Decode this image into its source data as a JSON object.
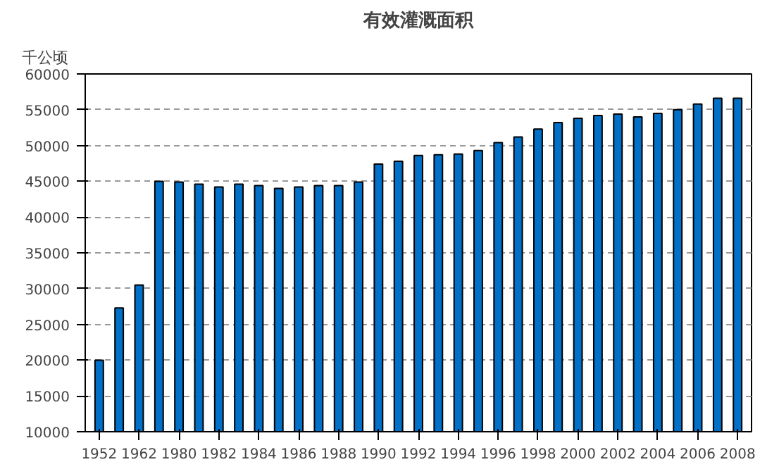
{
  "chart_data": {
    "type": "bar",
    "title": "有效灌溉面积",
    "ylabel": "千公顷",
    "categories": [
      "1952",
      null,
      "1962",
      null,
      "1980",
      null,
      "1982",
      null,
      "1984",
      null,
      "1986",
      null,
      "1988",
      null,
      "1990",
      null,
      "1992",
      null,
      "1994",
      null,
      "1996",
      null,
      "1998",
      null,
      "2000",
      null,
      "2002",
      null,
      "2004",
      null,
      "2006",
      null,
      "2008"
    ],
    "values": [
      20000,
      27300,
      30500,
      45000,
      44900,
      44600,
      44200,
      44600,
      44400,
      44000,
      44200,
      44400,
      44400,
      44900,
      47400,
      47800,
      48600,
      48700,
      48800,
      49300,
      50400,
      51200,
      52300,
      53200,
      53800,
      54200,
      54400,
      54000,
      54500,
      55000,
      55800,
      56600,
      56600
    ],
    "color": "#0070c8",
    "ylim": [
      10000,
      60000
    ],
    "yticks": [
      10000,
      15000,
      20000,
      25000,
      30000,
      35000,
      40000,
      45000,
      50000,
      55000,
      60000
    ],
    "grid": "y"
  }
}
